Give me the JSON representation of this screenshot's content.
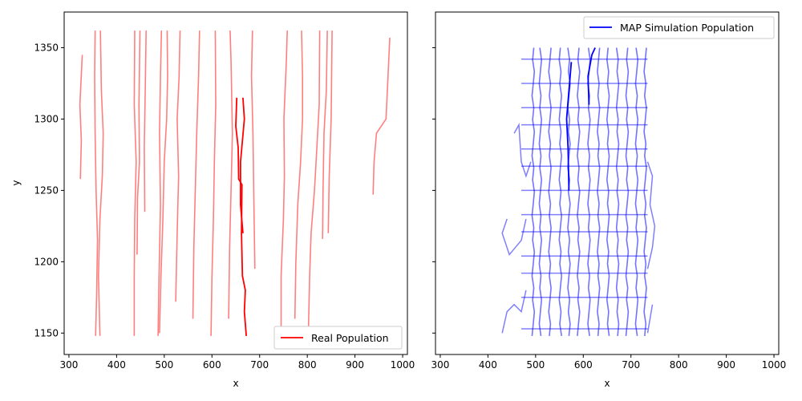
{
  "chart_data": [
    {
      "type": "line",
      "xlabel": "x",
      "ylabel": "y",
      "xlim": [
        290,
        1010
      ],
      "ylim": [
        1135,
        1375
      ],
      "xticks": [
        300,
        400,
        500,
        600,
        700,
        800,
        900,
        1000
      ],
      "yticks": [
        1150,
        1200,
        1250,
        1300,
        1350
      ],
      "legend_position": "lower-right",
      "color": "#ff0000",
      "series": [
        {
          "name": "Real Population",
          "highlight": [
            [
              672,
              1148
            ],
            [
              668,
              1165
            ],
            [
              670,
              1180
            ],
            [
              664,
              1190
            ],
            [
              662,
              1220
            ],
            [
              663,
              1254
            ],
            [
              656,
              1258
            ],
            [
              655,
              1280
            ],
            [
              650,
              1295
            ],
            [
              652,
              1315
            ]
          ]
        },
        {
          "highlight": [
            [
              665,
              1315
            ],
            [
              668,
              1300
            ],
            [
              660,
              1270
            ],
            [
              660,
              1240
            ],
            [
              665,
              1220
            ]
          ]
        },
        {
          "points": [
            [
              356,
              1148
            ],
            [
              358,
              1175
            ],
            [
              360,
              1215
            ],
            [
              357,
              1250
            ],
            [
              355,
              1290
            ],
            [
              354,
              1330
            ],
            [
              355,
              1362
            ]
          ]
        },
        {
          "points": [
            [
              365,
              1148
            ],
            [
              362,
              1190
            ],
            [
              365,
              1230
            ],
            [
              370,
              1260
            ],
            [
              372,
              1290
            ],
            [
              368,
              1320
            ],
            [
              366,
              1362
            ]
          ]
        },
        {
          "points": [
            [
              437,
              1148
            ],
            [
              437,
              1190
            ],
            [
              438,
              1230
            ],
            [
              441,
              1270
            ],
            [
              437,
              1310
            ],
            [
              438,
              1362
            ]
          ]
        },
        {
          "points": [
            [
              443,
              1205
            ],
            [
              444,
              1245
            ],
            [
              448,
              1270
            ],
            [
              447,
              1310
            ],
            [
              449,
              1362
            ]
          ]
        },
        {
          "points": [
            [
              459,
              1235
            ],
            [
              458,
              1280
            ],
            [
              460,
              1320
            ],
            [
              462,
              1362
            ]
          ]
        },
        {
          "points": [
            [
              487,
              1148
            ],
            [
              489,
              1190
            ],
            [
              492,
              1240
            ],
            [
              490,
              1290
            ],
            [
              492,
              1330
            ],
            [
              494,
              1362
            ]
          ]
        },
        {
          "points": [
            [
              490,
              1150
            ],
            [
              493,
              1190
            ],
            [
              497,
              1230
            ],
            [
              500,
              1270
            ],
            [
              505,
              1300
            ],
            [
              507,
              1330
            ],
            [
              506,
              1362
            ]
          ]
        },
        {
          "points": [
            [
              524,
              1172
            ],
            [
              527,
              1220
            ],
            [
              530,
              1260
            ],
            [
              527,
              1300
            ],
            [
              531,
              1330
            ],
            [
              533,
              1362
            ]
          ]
        },
        {
          "points": [
            [
              560,
              1160
            ],
            [
              562,
              1210
            ],
            [
              565,
              1250
            ],
            [
              568,
              1290
            ],
            [
              572,
              1330
            ],
            [
              574,
              1362
            ]
          ]
        },
        {
          "points": [
            [
              598,
              1148
            ],
            [
              600,
              1190
            ],
            [
              603,
              1230
            ],
            [
              605,
              1270
            ],
            [
              608,
              1310
            ],
            [
              607,
              1362
            ]
          ]
        },
        {
          "points": [
            [
              635,
              1160
            ],
            [
              637,
              1210
            ],
            [
              640,
              1250
            ],
            [
              643,
              1290
            ],
            [
              640,
              1340
            ],
            [
              638,
              1362
            ]
          ]
        },
        {
          "points": [
            [
              690,
              1195
            ],
            [
              688,
              1240
            ],
            [
              686,
              1290
            ],
            [
              683,
              1330
            ],
            [
              685,
              1362
            ]
          ]
        },
        {
          "points": [
            [
              745,
              1148
            ],
            [
              745,
              1190
            ],
            [
              750,
              1230
            ],
            [
              752,
              1260
            ],
            [
              751,
              1300
            ],
            [
              756,
              1340
            ],
            [
              758,
              1362
            ]
          ]
        },
        {
          "points": [
            [
              774,
              1160
            ],
            [
              776,
              1200
            ],
            [
              780,
              1240
            ],
            [
              786,
              1270
            ],
            [
              790,
              1300
            ],
            [
              790,
              1330
            ],
            [
              788,
              1362
            ]
          ]
        },
        {
          "points": [
            [
              802,
              1148
            ],
            [
              805,
              1190
            ],
            [
              808,
              1220
            ],
            [
              815,
              1250
            ],
            [
              820,
              1280
            ],
            [
              825,
              1310
            ],
            [
              826,
              1362
            ]
          ]
        },
        {
          "points": [
            [
              832,
              1216
            ],
            [
              833,
              1250
            ],
            [
              835,
              1290
            ],
            [
              840,
              1320
            ],
            [
              842,
              1362
            ]
          ]
        },
        {
          "points": [
            [
              844,
              1220
            ],
            [
              846,
              1260
            ],
            [
              850,
              1300
            ],
            [
              852,
              1362
            ]
          ]
        },
        {
          "points": [
            [
              938,
              1247
            ],
            [
              940,
              1270
            ],
            [
              945,
              1290
            ],
            [
              965,
              1300
            ],
            [
              968,
              1320
            ],
            [
              973,
              1357
            ]
          ]
        },
        {
          "points": [
            [
              324,
              1258
            ],
            [
              326,
              1285
            ],
            [
              323,
              1310
            ],
            [
              328,
              1345
            ]
          ]
        }
      ]
    },
    {
      "type": "line",
      "xlabel": "x",
      "xlim": [
        290,
        1010
      ],
      "ylim": [
        1135,
        1375
      ],
      "xticks": [
        300,
        400,
        500,
        600,
        700,
        800,
        900,
        1000
      ],
      "legend_position": "upper-right",
      "color": "#0000ff",
      "grid_columns": [
        495,
        510,
        530,
        552,
        570,
        590,
        612,
        632,
        652,
        672,
        692,
        712,
        730
      ],
      "grid_rows": [
        1155,
        1175,
        1190,
        1205,
        1220,
        1235,
        1250,
        1265,
        1280,
        1295,
        1310,
        1325,
        1340
      ],
      "y_range": [
        1148,
        1350
      ],
      "series": [
        {
          "name": "MAP Simulation Population",
          "highlight": [
            [
              570,
              1250
            ],
            [
              568,
              1280
            ],
            [
              565,
              1300
            ],
            [
              570,
              1320
            ],
            [
              575,
              1340
            ]
          ]
        },
        {
          "highlight": [
            [
              612,
              1310
            ],
            [
              610,
              1330
            ],
            [
              618,
              1345
            ],
            [
              625,
              1350
            ]
          ]
        },
        {
          "outer": [
            [
              430,
              1150
            ],
            [
              440,
              1165
            ],
            [
              455,
              1170
            ],
            [
              470,
              1165
            ],
            [
              480,
              1180
            ]
          ]
        },
        {
          "outer": [
            [
              440,
              1230
            ],
            [
              430,
              1220
            ],
            [
              445,
              1205
            ],
            [
              470,
              1215
            ],
            [
              480,
              1230
            ]
          ]
        },
        {
          "outer": [
            [
              455,
              1290
            ],
            [
              465,
              1296
            ],
            [
              470,
              1270
            ],
            [
              480,
              1260
            ],
            [
              490,
              1270
            ]
          ]
        },
        {
          "outer": [
            [
              735,
              1270
            ],
            [
              745,
              1260
            ],
            [
              740,
              1240
            ],
            [
              750,
              1225
            ],
            [
              745,
              1210
            ],
            [
              735,
              1195
            ]
          ]
        },
        {
          "outer": [
            [
              740,
              1160
            ],
            [
              735,
              1150
            ],
            [
              745,
              1170
            ]
          ]
        }
      ]
    }
  ]
}
